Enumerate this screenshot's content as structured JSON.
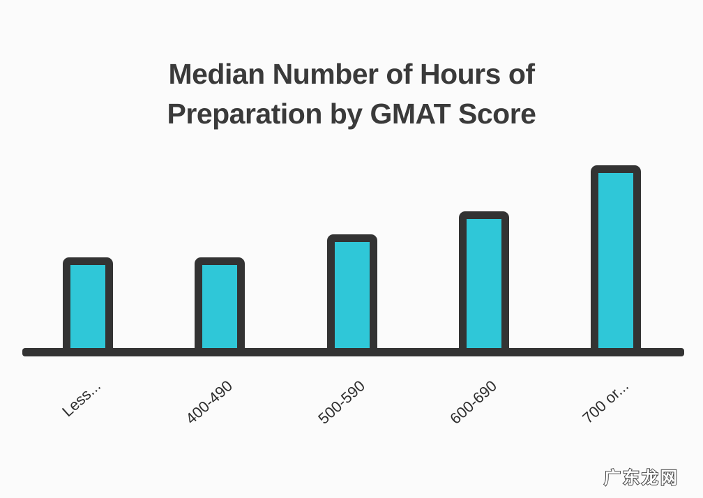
{
  "page": {
    "background": "#fbfbfb"
  },
  "chart_data": {
    "type": "bar",
    "title": "Median Number of Hours of Preparation by GMAT Score",
    "title_lines": [
      "Median Number of Hours of",
      "Preparation by GMAT Score"
    ],
    "categories": [
      "Less...",
      "400-490",
      "500-590",
      "600-690",
      "700 or..."
    ],
    "values": [
      52,
      52,
      64,
      76,
      100
    ],
    "value_note": "relative bar heights as % of tallest bar; no y-axis, gridlines or data labels are shown in the image",
    "xlabel": "",
    "ylabel": "",
    "grid": false,
    "legend": false,
    "bar_fill": "#2fc7d8",
    "bar_outline": "#333333",
    "axis_color": "#333333",
    "label_color": "#2e2e2e",
    "title_color": "#3a3a3a"
  },
  "watermark": {
    "text": "广东龙网"
  }
}
